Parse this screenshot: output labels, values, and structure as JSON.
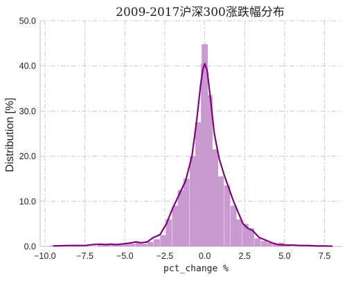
{
  "chart_data": {
    "type": "bar",
    "title": "2009-2017沪深300涨跌幅分布",
    "xlabel": "pct_change %",
    "ylabel": "Distribution [%]",
    "xlim": [
      -10.3,
      8.6
    ],
    "ylim": [
      0,
      50
    ],
    "xticks": [
      -10.0,
      -7.5,
      -5.0,
      -2.5,
      0.0,
      2.5,
      5.0,
      7.5
    ],
    "xtick_labels": [
      "−10.0",
      "−7.5",
      "−5.0",
      "−2.5",
      "0.0",
      "2.5",
      "5.0",
      "7.5"
    ],
    "yticks": [
      0,
      10,
      20,
      30,
      40,
      50
    ],
    "ytick_labels": [
      "0.0",
      "10.0",
      "20.0",
      "30.0",
      "40.0",
      "50.0"
    ],
    "grid": true,
    "colors": {
      "bars": "#c89ad0",
      "kde": "#800080"
    },
    "histogram": {
      "bin_width": 0.38,
      "bins": [
        {
          "x": -9.5,
          "value": 0.2
        },
        {
          "x": -6.5,
          "value": 0.3
        },
        {
          "x": -6.1,
          "value": 0.4
        },
        {
          "x": -5.7,
          "value": 0.3
        },
        {
          "x": -5.3,
          "value": 0.4
        },
        {
          "x": -4.9,
          "value": 0.5
        },
        {
          "x": -4.55,
          "value": 0.6
        },
        {
          "x": -4.15,
          "value": 0.8
        },
        {
          "x": -3.8,
          "value": 0.6
        },
        {
          "x": -3.4,
          "value": 1.0
        },
        {
          "x": -3.0,
          "value": 1.6
        },
        {
          "x": -2.6,
          "value": 2.5
        },
        {
          "x": -2.25,
          "value": 6.0
        },
        {
          "x": -1.85,
          "value": 9.0
        },
        {
          "x": -1.5,
          "value": 12.5
        },
        {
          "x": -1.15,
          "value": 15.0
        },
        {
          "x": -0.75,
          "value": 20.0
        },
        {
          "x": -0.4,
          "value": 27.5
        },
        {
          "x": -0.05,
          "value": 40.5
        },
        {
          "x": 0.0,
          "value": 44.8
        },
        {
          "x": 0.3,
          "value": 33.5
        },
        {
          "x": 0.65,
          "value": 21.5
        },
        {
          "x": 1.0,
          "value": 15.5
        },
        {
          "x": 1.4,
          "value": 13.5
        },
        {
          "x": 1.8,
          "value": 9.0
        },
        {
          "x": 2.15,
          "value": 6.0
        },
        {
          "x": 2.55,
          "value": 5.0
        },
        {
          "x": 2.9,
          "value": 4.0
        },
        {
          "x": 3.3,
          "value": 1.8
        },
        {
          "x": 3.7,
          "value": 1.2
        },
        {
          "x": 4.05,
          "value": 0.8
        },
        {
          "x": 4.45,
          "value": 0.5
        },
        {
          "x": 4.8,
          "value": 0.8
        },
        {
          "x": 5.2,
          "value": 0.3
        },
        {
          "x": 6.3,
          "value": 0.2
        },
        {
          "x": 7.0,
          "value": 0.2
        }
      ]
    },
    "kde": {
      "x": [
        -9.5,
        -8.5,
        -7.5,
        -7.0,
        -6.5,
        -6.2,
        -5.9,
        -5.5,
        -5.0,
        -4.6,
        -4.3,
        -4.0,
        -3.6,
        -3.2,
        -2.8,
        -2.4,
        -2.0,
        -1.6,
        -1.2,
        -0.8,
        -0.5,
        -0.25,
        -0.1,
        0.0,
        0.15,
        0.35,
        0.6,
        0.9,
        1.2,
        1.5,
        1.8,
        2.1,
        2.4,
        2.7,
        3.0,
        3.4,
        3.8,
        4.2,
        4.6,
        5.0,
        5.5,
        6.0,
        6.5,
        7.0,
        7.5,
        8.0
      ],
      "y": [
        0.1,
        0.2,
        0.2,
        0.4,
        0.5,
        0.4,
        0.5,
        0.4,
        0.6,
        0.8,
        1.0,
        0.8,
        1.0,
        2.0,
        2.6,
        5.0,
        8.5,
        11.5,
        14.5,
        20.0,
        28.0,
        36.0,
        39.5,
        40.5,
        39.0,
        33.0,
        25.0,
        19.5,
        16.0,
        13.0,
        10.0,
        7.5,
        5.0,
        4.0,
        3.5,
        2.0,
        1.4,
        0.8,
        0.4,
        0.3,
        0.3,
        0.2,
        0.2,
        0.1,
        0.1,
        0.05
      ]
    }
  }
}
